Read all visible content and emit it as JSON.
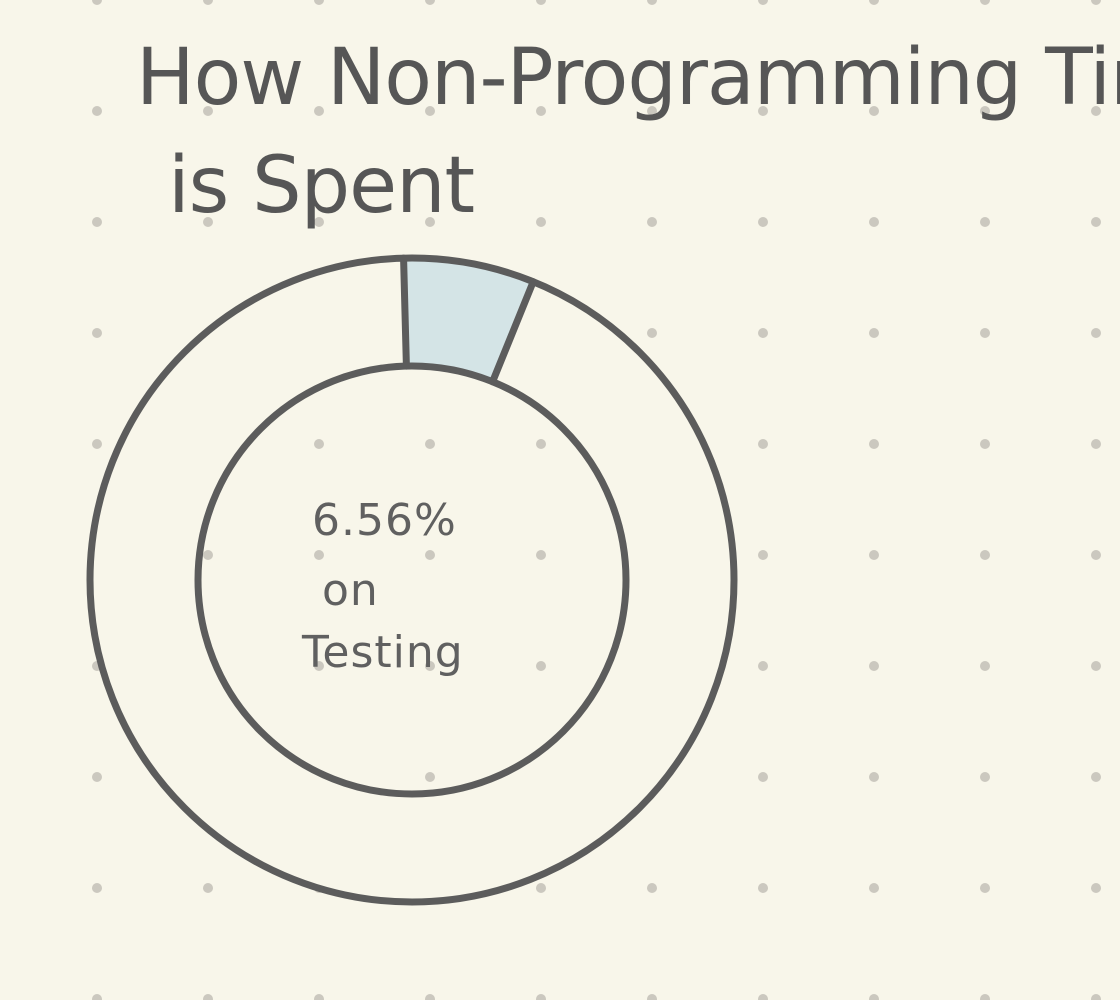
{
  "chart_data": {
    "type": "pie",
    "title": "How Non-Programming Time is Spent",
    "title_lines": [
      "How Non-Programming Time",
      "is Spent"
    ],
    "slices": [
      {
        "label": "Testing",
        "percent": 6.56,
        "highlighted": true
      },
      {
        "label": "",
        "percent": 93.44,
        "highlighted": false
      }
    ],
    "center_label": {
      "value": "6.56%",
      "line2": "on",
      "line3": "Testing"
    },
    "colors": {
      "background": "#f8f6ea",
      "highlight": "#d4e4e6",
      "stroke": "#5c5c5c",
      "grid_dot": "#cbc8bf"
    },
    "grid": "dotted",
    "legend": "none"
  }
}
